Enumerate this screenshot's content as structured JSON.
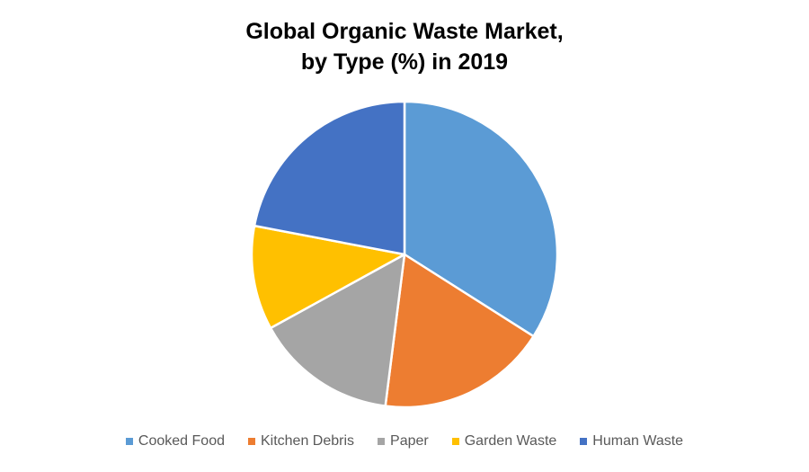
{
  "chart_data": {
    "type": "pie",
    "title_lines": [
      "Global Organic Waste Market,",
      "by Type (%) in 2019"
    ],
    "categories": [
      "Cooked Food",
      "Kitchen Debris",
      "Paper",
      "Garden Waste",
      "Human Waste"
    ],
    "values": [
      34,
      18,
      15,
      11,
      22
    ],
    "colors": [
      "#5B9BD5",
      "#ED7D31",
      "#A5A5A5",
      "#FFC000",
      "#4472C4"
    ],
    "legend_position": "bottom",
    "start": "top, clockwise"
  }
}
